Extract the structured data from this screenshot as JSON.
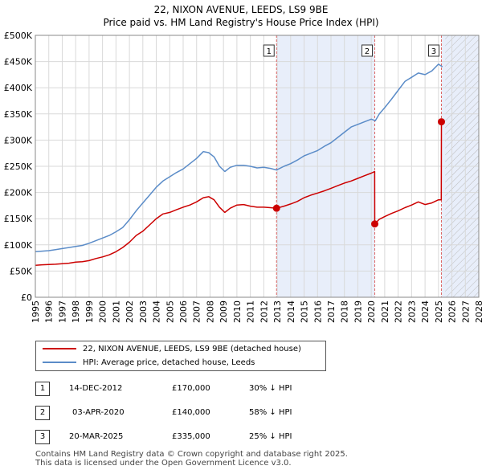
{
  "title_line1": "22, NIXON AVENUE, LEEDS, LS9 9BE",
  "title_line2": "Price paid vs. HM Land Registry's House Price Index (HPI)",
  "legend": {
    "property_label": "22, NIXON AVENUE, LEEDS, LS9 9BE (detached house)",
    "hpi_label": "HPI: Average price, detached house, Leeds"
  },
  "transactions": [
    {
      "num": "1",
      "date": "14-DEC-2012",
      "price": "£170,000",
      "pct": "30% ↓ HPI"
    },
    {
      "num": "2",
      "date": "03-APR-2020",
      "price": "£140,000",
      "pct": "58% ↓ HPI"
    },
    {
      "num": "3",
      "date": "20-MAR-2025",
      "price": "£335,000",
      "pct": "25% ↓ HPI"
    }
  ],
  "footer_line1": "Contains HM Land Registry data © Crown copyright and database right 2025.",
  "footer_line2": "This data is licensed under the Open Government Licence v3.0.",
  "colors": {
    "property": "#cc0000",
    "hpi": "#5b8cc8",
    "shade": "#e8eefa",
    "grid": "#d9d9d9",
    "vline": "#dd6666"
  },
  "chart_data": {
    "type": "line",
    "xlim": [
      1995,
      2028
    ],
    "ylim": [
      0,
      500000
    ],
    "x_ticks": [
      "1995",
      "1996",
      "1997",
      "1998",
      "1999",
      "2000",
      "2001",
      "2002",
      "2003",
      "2004",
      "2005",
      "2006",
      "2007",
      "2008",
      "2009",
      "2010",
      "2011",
      "2012",
      "2013",
      "2014",
      "2015",
      "2016",
      "2017",
      "2018",
      "2019",
      "2020",
      "2021",
      "2022",
      "2023",
      "2024",
      "2025",
      "2026",
      "2027",
      "2028"
    ],
    "y_ticks": [
      {
        "value": 0,
        "label": "£0"
      },
      {
        "value": 50000,
        "label": "£50K"
      },
      {
        "value": 100000,
        "label": "£100K"
      },
      {
        "value": 150000,
        "label": "£150K"
      },
      {
        "value": 200000,
        "label": "£200K"
      },
      {
        "value": 250000,
        "label": "£250K"
      },
      {
        "value": 300000,
        "label": "£300K"
      },
      {
        "value": 350000,
        "label": "£350K"
      },
      {
        "value": 400000,
        "label": "£400K"
      },
      {
        "value": 450000,
        "label": "£450K"
      },
      {
        "value": 500000,
        "label": "£500K"
      }
    ],
    "shaded_periods": [
      [
        2012.95,
        2020.26
      ],
      [
        2025.22,
        2028
      ]
    ],
    "hatch_from": 2025.5,
    "markers": [
      {
        "label": "1",
        "x": 2012.95,
        "y": 170000
      },
      {
        "label": "2",
        "x": 2020.26,
        "y": 140000
      },
      {
        "label": "3",
        "x": 2025.22,
        "y": 335000
      }
    ],
    "series": [
      {
        "name": "HPI: Average price, detached house, Leeds",
        "x": [
          1995.0,
          1995.5,
          1996.0,
          1996.5,
          1997.0,
          1997.5,
          1998.0,
          1998.5,
          1999.0,
          1999.5,
          2000.0,
          2000.5,
          2001.0,
          2001.5,
          2002.0,
          2002.5,
          2003.0,
          2003.5,
          2004.0,
          2004.5,
          2005.0,
          2005.5,
          2006.0,
          2006.5,
          2007.0,
          2007.5,
          2007.9,
          2008.3,
          2008.7,
          2009.1,
          2009.5,
          2010.0,
          2010.5,
          2011.0,
          2011.5,
          2012.0,
          2012.5,
          2012.95,
          2013.5,
          2014.0,
          2014.5,
          2015.0,
          2015.5,
          2016.0,
          2016.5,
          2017.0,
          2017.5,
          2018.0,
          2018.5,
          2019.0,
          2019.5,
          2020.0,
          2020.3,
          2020.6,
          2021.0,
          2021.5,
          2022.0,
          2022.5,
          2023.0,
          2023.5,
          2024.0,
          2024.5,
          2025.0,
          2025.3
        ],
        "y": [
          87000,
          88000,
          89000,
          91000,
          93000,
          95000,
          97000,
          99000,
          103000,
          108000,
          113000,
          118000,
          125000,
          133000,
          148000,
          165000,
          180000,
          195000,
          210000,
          222000,
          230000,
          238000,
          245000,
          255000,
          265000,
          278000,
          276000,
          268000,
          250000,
          240000,
          248000,
          252000,
          252000,
          250000,
          247000,
          248000,
          246000,
          243000,
          250000,
          255000,
          262000,
          270000,
          275000,
          280000,
          288000,
          295000,
          305000,
          315000,
          325000,
          330000,
          335000,
          340000,
          337000,
          350000,
          362000,
          378000,
          395000,
          412000,
          420000,
          428000,
          425000,
          432000,
          445000,
          440000
        ]
      },
      {
        "name": "22, NIXON AVENUE, LEEDS, LS9 9BE (detached house)",
        "x": [
          1995.0,
          1995.5,
          1996.0,
          1996.5,
          1997.0,
          1997.5,
          1998.0,
          1998.5,
          1999.0,
          1999.5,
          2000.0,
          2000.5,
          2001.0,
          2001.5,
          2002.0,
          2002.5,
          2003.0,
          2003.5,
          2004.0,
          2004.5,
          2005.0,
          2005.5,
          2006.0,
          2006.5,
          2007.0,
          2007.5,
          2007.9,
          2008.3,
          2008.7,
          2009.1,
          2009.5,
          2010.0,
          2010.5,
          2011.0,
          2011.5,
          2012.0,
          2012.5,
          2012.95,
          2013.5,
          2014.0,
          2014.5,
          2015.0,
          2015.5,
          2016.0,
          2016.5,
          2017.0,
          2017.5,
          2018.0,
          2018.5,
          2019.0,
          2019.5,
          2020.0,
          2020.25,
          2020.26,
          2020.6,
          2021.0,
          2021.5,
          2022.0,
          2022.5,
          2023.0,
          2023.5,
          2024.0,
          2024.5,
          2025.0,
          2025.21,
          2025.22
        ],
        "y": [
          61000,
          62000,
          62500,
          63000,
          64000,
          65000,
          67000,
          68000,
          70000,
          74000,
          77000,
          81000,
          87000,
          95000,
          105000,
          118000,
          126000,
          138000,
          150000,
          159000,
          162000,
          167000,
          172000,
          176000,
          182000,
          190000,
          192000,
          186000,
          172000,
          162000,
          170000,
          176000,
          177000,
          174000,
          172000,
          172000,
          171000,
          170000,
          174000,
          178000,
          183000,
          190000,
          195000,
          199000,
          203000,
          208000,
          213000,
          218000,
          222000,
          227000,
          232000,
          237000,
          240000,
          140000,
          149000,
          154000,
          160000,
          165000,
          171000,
          176000,
          182000,
          177000,
          180000,
          186000,
          186000,
          335000
        ]
      }
    ]
  }
}
